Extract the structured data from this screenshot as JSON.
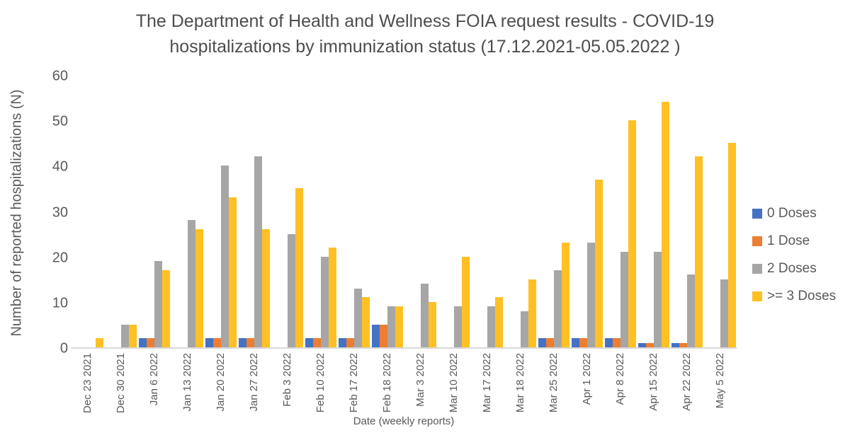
{
  "title_lines": [
    "The Department of Health and Wellness FOIA request results - COVID-19",
    "hospitalizations by immunization status (17.12.2021-05.05.2022 )"
  ],
  "chart_data": {
    "type": "bar",
    "title": "The Department of Health and Wellness FOIA request results - COVID-19 hospitalizations by immunization status (17.12.2021-05.05.2022 )",
    "xlabel": "Date (weekly reports)",
    "ylabel": "Number of reported hospitalizations (N)",
    "ylim": [
      0,
      60
    ],
    "yticks": [
      0,
      10,
      20,
      30,
      40,
      50,
      60
    ],
    "grid": false,
    "legend_position": "right",
    "axis_line_color": "#d9d9d9",
    "text_color": "#595959",
    "categories": [
      "Dec 23 2021",
      "Dec 30 2021",
      "Jan 6 2022",
      "Jan 13 2022",
      "Jan 20 2022",
      "Jan 27 2022",
      "Feb 3 2022",
      "Feb 10 2022",
      "Feb 17 2022",
      "Feb 18 2022",
      "Mar 3 2022",
      "Mar 10 2022",
      "Mar 17 2022",
      "Mar 18 2022",
      "Mar 25 2022",
      "Apr 1 2022",
      "Apr 8 2022",
      "Apr 15 2022",
      "Apr 22 2022",
      "May 5 2022"
    ],
    "series": [
      {
        "name": "0 Doses",
        "color": "#4472C4",
        "values": [
          0,
          0,
          2,
          0,
          2,
          2,
          0,
          2,
          2,
          5,
          0,
          0,
          0,
          0,
          2,
          2,
          2,
          1,
          1,
          0
        ]
      },
      {
        "name": "1 Dose",
        "color": "#ED7D31",
        "values": [
          0,
          0,
          2,
          0,
          2,
          2,
          0,
          2,
          2,
          5,
          0,
          0,
          0,
          0,
          2,
          2,
          2,
          1,
          1,
          0
        ]
      },
      {
        "name": "2 Doses",
        "color": "#A6A6A6",
        "values": [
          0,
          5,
          19,
          28,
          40,
          42,
          25,
          20,
          13,
          9,
          14,
          9,
          9,
          8,
          17,
          23,
          21,
          21,
          16,
          15
        ]
      },
      {
        "name": ">= 3 Doses",
        "color": "#FFC024",
        "values": [
          2,
          5,
          17,
          26,
          33,
          26,
          35,
          22,
          11,
          9,
          10,
          20,
          11,
          15,
          23,
          37,
          50,
          54,
          42,
          45
        ]
      }
    ]
  }
}
